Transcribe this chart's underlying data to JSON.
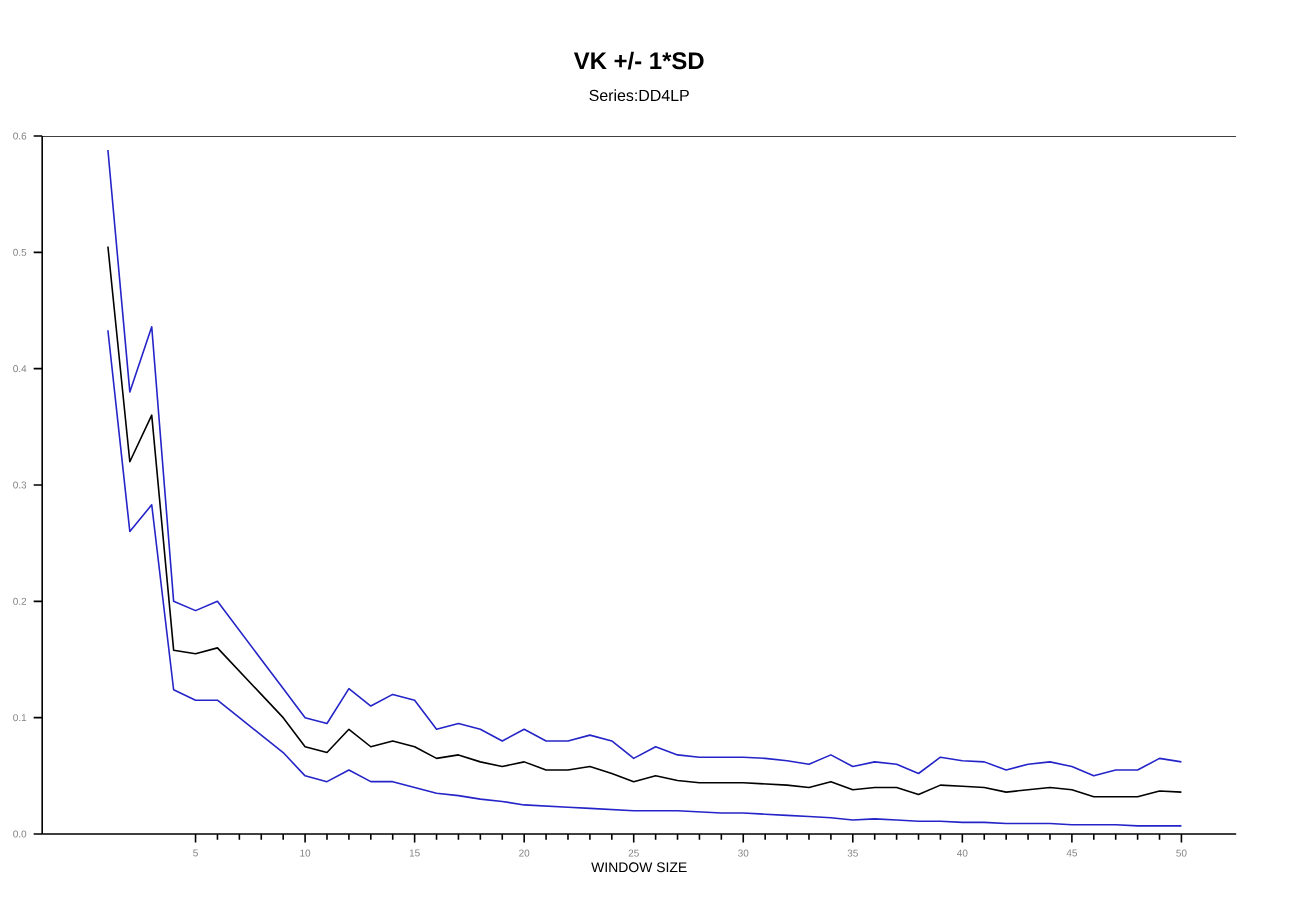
{
  "chart_data": {
    "type": "line",
    "title": "VK +/- 1*SD",
    "subtitle": "Series:DD4LP",
    "xlabel": "WINDOW SIZE",
    "x": [
      1,
      2,
      3,
      4,
      5,
      6,
      7,
      8,
      9,
      10,
      11,
      12,
      13,
      14,
      15,
      16,
      17,
      18,
      19,
      20,
      21,
      22,
      23,
      24,
      25,
      26,
      27,
      28,
      29,
      30,
      31,
      32,
      33,
      34,
      35,
      36,
      37,
      38,
      39,
      40,
      41,
      42,
      43,
      44,
      45,
      46,
      47,
      48,
      49,
      50
    ],
    "series": [
      {
        "color": "#2424c8",
        "values": [
          0.588,
          0.38,
          0.436,
          0.2,
          0.192,
          0.2,
          0.175,
          0.15,
          0.125,
          0.1,
          0.095,
          0.125,
          0.11,
          0.12,
          0.115,
          0.09,
          0.095,
          0.09,
          0.08,
          0.09,
          0.08,
          0.08,
          0.085,
          0.08,
          0.065,
          0.075,
          0.068,
          0.066,
          0.066,
          0.066,
          0.065,
          0.063,
          0.06,
          0.068,
          0.058,
          0.062,
          0.06,
          0.052,
          0.066,
          0.063,
          0.062,
          0.055,
          0.06,
          0.062,
          0.058,
          0.05,
          0.055,
          0.055,
          0.065,
          0.062
        ]
      },
      {
        "color": "#000000",
        "values": [
          0.505,
          0.32,
          0.36,
          0.158,
          0.155,
          0.16,
          0.14,
          0.12,
          0.1,
          0.075,
          0.07,
          0.09,
          0.075,
          0.08,
          0.075,
          0.065,
          0.068,
          0.062,
          0.058,
          0.062,
          0.055,
          0.055,
          0.058,
          0.052,
          0.045,
          0.05,
          0.046,
          0.044,
          0.044,
          0.044,
          0.043,
          0.042,
          0.04,
          0.045,
          0.038,
          0.04,
          0.04,
          0.034,
          0.042,
          0.041,
          0.04,
          0.036,
          0.038,
          0.04,
          0.038,
          0.032,
          0.032,
          0.032,
          0.037,
          0.036
        ]
      },
      {
        "color": "#2424c8",
        "values": [
          0.433,
          0.26,
          0.283,
          0.124,
          0.115,
          0.115,
          0.1,
          0.085,
          0.07,
          0.05,
          0.045,
          0.055,
          0.045,
          0.045,
          0.04,
          0.035,
          0.033,
          0.03,
          0.028,
          0.025,
          0.024,
          0.023,
          0.022,
          0.021,
          0.02,
          0.02,
          0.02,
          0.019,
          0.018,
          0.018,
          0.017,
          0.016,
          0.015,
          0.014,
          0.012,
          0.013,
          0.012,
          0.011,
          0.011,
          0.01,
          0.01,
          0.009,
          0.009,
          0.009,
          0.008,
          0.008,
          0.008,
          0.007,
          0.007,
          0.007
        ]
      }
    ],
    "xlim": [
      -2,
      52.5
    ],
    "ylim": [
      0,
      0.6
    ],
    "xticks": [
      5,
      10,
      15,
      20,
      25,
      30,
      35,
      40,
      45,
      50
    ],
    "yticks": [
      {
        "value": 0,
        "label": "0.0"
      },
      {
        "value": 0.1,
        "label": "0.1"
      },
      {
        "value": 0.2,
        "label": "0.2"
      },
      {
        "value": 0.3,
        "label": "0.3"
      },
      {
        "value": 0.4,
        "label": "0.4"
      },
      {
        "value": 0.5,
        "label": "0.5"
      },
      {
        "value": 0.6,
        "label": "0.6"
      }
    ],
    "grid": false,
    "marker": "none",
    "line_style": "solid"
  }
}
